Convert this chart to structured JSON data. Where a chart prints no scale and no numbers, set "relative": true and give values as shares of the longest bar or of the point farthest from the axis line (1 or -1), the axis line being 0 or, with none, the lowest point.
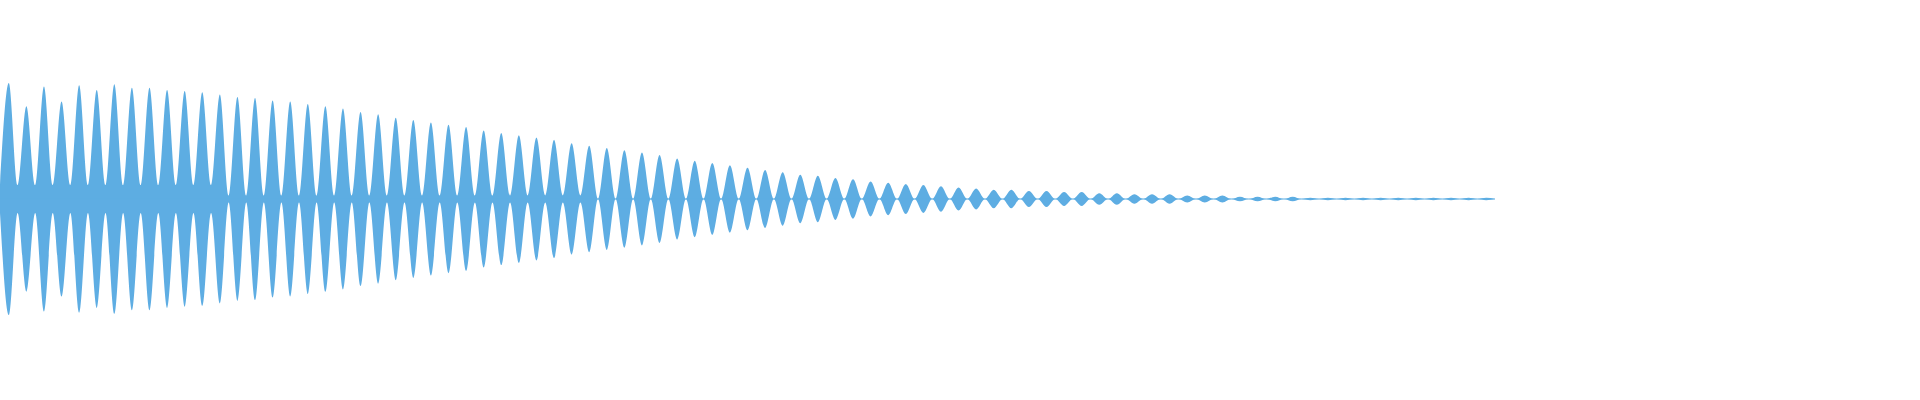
{
  "chart_data": {
    "type": "area",
    "relative": true,
    "ref_lines": [
      {
        "axis": "y",
        "value": 0,
        "color": "#5dade2"
      }
    ],
    "categories": [
      null,
      null,
      null,
      null,
      null,
      null,
      null,
      null,
      null,
      null,
      null,
      null,
      null,
      null,
      null,
      null,
      null,
      null,
      null,
      null,
      null,
      null,
      null,
      null,
      null,
      null,
      null,
      null,
      null,
      null,
      null,
      null,
      null,
      null,
      null,
      null,
      null,
      null,
      null,
      null,
      null,
      null,
      null,
      null,
      null,
      null,
      null,
      null,
      null,
      null,
      null,
      null,
      null,
      null,
      null,
      null,
      null,
      null,
      null,
      null,
      null,
      null,
      null,
      null,
      null,
      null,
      null,
      null,
      null,
      null,
      null,
      null,
      null,
      null,
      null,
      null,
      null,
      null,
      null,
      null,
      null,
      null,
      null,
      null,
      null,
      null,
      null,
      null,
      null,
      null,
      null,
      null,
      null,
      null,
      null,
      null,
      null,
      null,
      null,
      null,
      null,
      null,
      null,
      null,
      null,
      null,
      null,
      null,
      null,
      null,
      null,
      null,
      null,
      null,
      null,
      null,
      null,
      null,
      null,
      null,
      null,
      null,
      null,
      null,
      null,
      null,
      null,
      null,
      null,
      null,
      null,
      null,
      null,
      null,
      null,
      null,
      null,
      null,
      null,
      null,
      null,
      null,
      null,
      null,
      null,
      null,
      null,
      null,
      null,
      null,
      null,
      null,
      null,
      null,
      null,
      null,
      null,
      null,
      null,
      null,
      null,
      null,
      null,
      null,
      null,
      null,
      null,
      null,
      null,
      null,
      null
    ],
    "series": [
      {
        "color": "#5dade2",
        "values": [
          0.12,
          1,
          0.12,
          0.8,
          0.12,
          0.97,
          0.12,
          0.84,
          0.12,
          0.98,
          0.12,
          0.94,
          0.12,
          0.99,
          0.12,
          0.96,
          0.12,
          0.96,
          0.12,
          0.94,
          0.12,
          0.93,
          0.12,
          0.92,
          0.12,
          0.9,
          0.03,
          0.88,
          0.03,
          0.87,
          0.03,
          0.85,
          0.03,
          0.84,
          0.03,
          0.82,
          0.03,
          0.8,
          0.03,
          0.78,
          0.03,
          0.75,
          0.03,
          0.73,
          0.03,
          0.7,
          0.03,
          0.68,
          0.03,
          0.66,
          0.03,
          0.64,
          0.03,
          0.62,
          0.03,
          0.59,
          0.03,
          0.57,
          0.03,
          0.55,
          0.03,
          0.53,
          0.03,
          0.51,
          0.03,
          0.48,
          0.03,
          0.46,
          0,
          0.44,
          0,
          0.42,
          0,
          0.4,
          0,
          0.38,
          0,
          0.35,
          0,
          0.33,
          0,
          0.31,
          0,
          0.29,
          0,
          0.27,
          0,
          0.25,
          0,
          0.23,
          0,
          0.21,
          0,
          0.2,
          0,
          0.18,
          0,
          0.17,
          0,
          0.15,
          0,
          0.14,
          0,
          0.13,
          0,
          0.12,
          0,
          0.11,
          0,
          0.1,
          0,
          0.09,
          0,
          0.08,
          0,
          0.08,
          0,
          0.07,
          0,
          0.07,
          0,
          0.06,
          0,
          0.06,
          0,
          0.05,
          0,
          0.05,
          0,
          0.04,
          0,
          0.04,
          0,
          0.04,
          0,
          0.03,
          0,
          0.03,
          0,
          0.03,
          0,
          0.02,
          0,
          0.02,
          0,
          0.02,
          0,
          0.02,
          0,
          0.01,
          0,
          0.01,
          0,
          0.01,
          0,
          0.01,
          0,
          0.01,
          0,
          0.01,
          0,
          0.01,
          0,
          0.01,
          0,
          0.01,
          0,
          0.01,
          0,
          0.01,
          0
        ]
      },
      {
        "color": "#5eade3",
        "values": [
          -0.12,
          -1,
          -0.12,
          -0.8,
          -0.12,
          -0.97,
          -0.12,
          -0.84,
          -0.12,
          -0.98,
          -0.12,
          -0.94,
          -0.12,
          -0.99,
          -0.12,
          -0.96,
          -0.12,
          -0.96,
          -0.12,
          -0.94,
          -0.12,
          -0.93,
          -0.12,
          -0.92,
          -0.12,
          -0.9,
          -0.03,
          -0.88,
          -0.03,
          -0.87,
          -0.03,
          -0.85,
          -0.03,
          -0.84,
          -0.03,
          -0.82,
          -0.03,
          -0.8,
          -0.03,
          -0.78,
          -0.03,
          -0.75,
          -0.03,
          -0.73,
          -0.03,
          -0.7,
          -0.03,
          -0.68,
          -0.03,
          -0.66,
          -0.03,
          -0.64,
          -0.03,
          -0.62,
          -0.03,
          -0.59,
          -0.03,
          -0.57,
          -0.03,
          -0.55,
          -0.03,
          -0.53,
          -0.03,
          -0.51,
          -0.03,
          -0.48,
          -0.03,
          -0.46,
          0,
          -0.44,
          0,
          -0.42,
          0,
          -0.4,
          0,
          -0.38,
          0,
          -0.35,
          0,
          -0.33,
          0,
          -0.31,
          0,
          -0.29,
          0,
          -0.27,
          0,
          -0.25,
          0,
          -0.23,
          0,
          -0.21,
          0,
          -0.2,
          0,
          -0.18,
          0,
          -0.17,
          0,
          -0.15,
          0,
          -0.14,
          0,
          -0.13,
          0,
          -0.12,
          0,
          -0.11,
          0,
          -0.1,
          0,
          -0.09,
          0,
          -0.08,
          0,
          -0.08,
          0,
          -0.07,
          0,
          -0.07,
          0,
          -0.06,
          0,
          -0.06,
          0,
          -0.05,
          0,
          -0.05,
          0,
          -0.04,
          0,
          -0.04,
          0,
          -0.04,
          0,
          -0.03,
          0,
          -0.03,
          0,
          -0.03,
          0,
          -0.02,
          0,
          -0.02,
          0,
          -0.02,
          0,
          -0.02,
          0,
          -0.01,
          0,
          -0.01,
          0,
          -0.01,
          0,
          -0.01,
          0,
          -0.01,
          0,
          -0.01,
          0,
          -0.01,
          0,
          -0.01,
          0,
          -0.01,
          0,
          -0.01,
          0,
          -0.01,
          0
        ]
      }
    ]
  }
}
